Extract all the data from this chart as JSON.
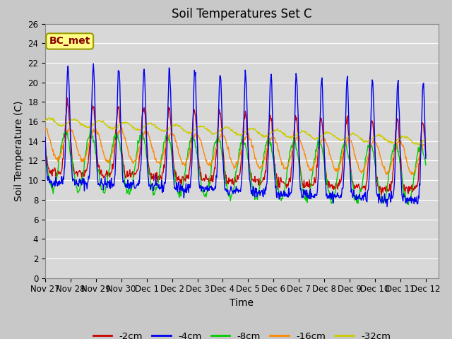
{
  "title": "Soil Temperatures Set C",
  "xlabel": "Time",
  "ylabel": "Soil Temperature (C)",
  "ylim": [
    0,
    26
  ],
  "background_color": "#c8c8c8",
  "plot_bg_color": "#d8d8d8",
  "grid_color": "#ffffff",
  "legend_labels": [
    "-2cm",
    "-4cm",
    "-8cm",
    "-16cm",
    "-32cm"
  ],
  "legend_colors": [
    "#cc0000",
    "#0000ee",
    "#00cc00",
    "#ff8800",
    "#cccc00"
  ],
  "annotation_text": "BC_met",
  "annotation_color": "#880000",
  "annotation_bg": "#ffff88",
  "x_tick_labels": [
    "Nov 27",
    "Nov 28",
    "Nov 29",
    "Nov 30",
    "Dec 1",
    "Dec 2",
    "Dec 3",
    "Dec 4",
    "Dec 5",
    "Dec 6",
    "Dec 7",
    "Dec 8",
    "Dec 9",
    "Dec 10",
    "Dec 11",
    "Dec 12"
  ],
  "title_fontsize": 12,
  "axis_label_fontsize": 10,
  "tick_fontsize": 8.5
}
